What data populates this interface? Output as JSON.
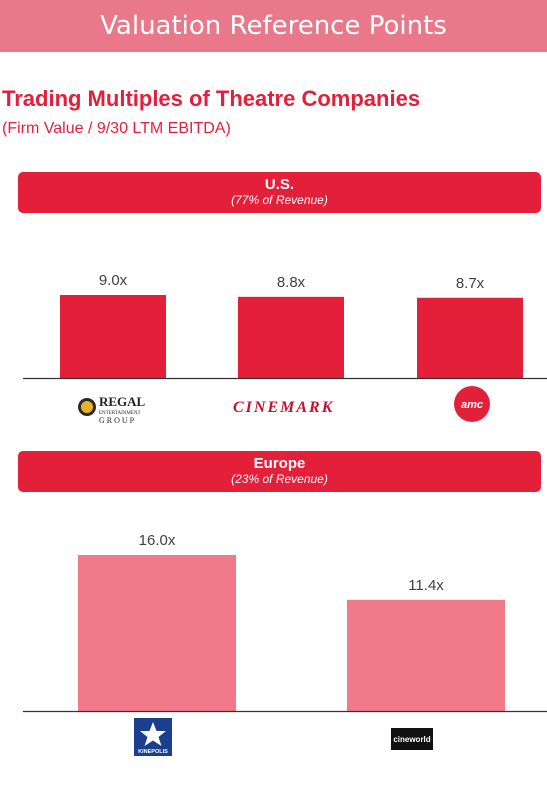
{
  "header": {
    "title": "Valuation Reference Points"
  },
  "section": {
    "heading": "Trading Multiples of Theatre Companies",
    "subheading": "(Firm Value / 9/30 LTM EBITDA)"
  },
  "colors": {
    "us_bar": "#e41f3a",
    "europe_bar": "#f07a8a",
    "banner": "#e8788a",
    "region_header": "#e41f3a"
  },
  "chart_data": [
    {
      "type": "bar",
      "region": "U.S.",
      "share": "(77% of Revenue)",
      "categories": [
        "Regal Entertainment Group",
        "Cinemark",
        "AMC"
      ],
      "values": [
        9.0,
        8.8,
        8.7
      ],
      "labels": [
        "9.0x",
        "8.8x",
        "8.7x"
      ],
      "logos": [
        {
          "icon": "regal-logo",
          "lines": [
            "REGAL",
            "ENTERTAINMENT",
            "GROUP"
          ]
        },
        {
          "icon": "cinemark-logo",
          "lines": [
            "CINEMARK"
          ]
        },
        {
          "icon": "amc-logo",
          "lines": [
            "amc"
          ]
        }
      ]
    },
    {
      "type": "bar",
      "region": "Europe",
      "share": "(23% of Revenue)",
      "categories": [
        "Kinepolis",
        "Cineworld"
      ],
      "values": [
        16.0,
        11.4
      ],
      "labels": [
        "16.0x",
        "11.4x"
      ],
      "logos": [
        {
          "icon": "kinepolis-logo",
          "lines": [
            "KINEPOLIS"
          ]
        },
        {
          "icon": "cineworld-logo",
          "lines": [
            "cineworld"
          ]
        }
      ]
    }
  ]
}
